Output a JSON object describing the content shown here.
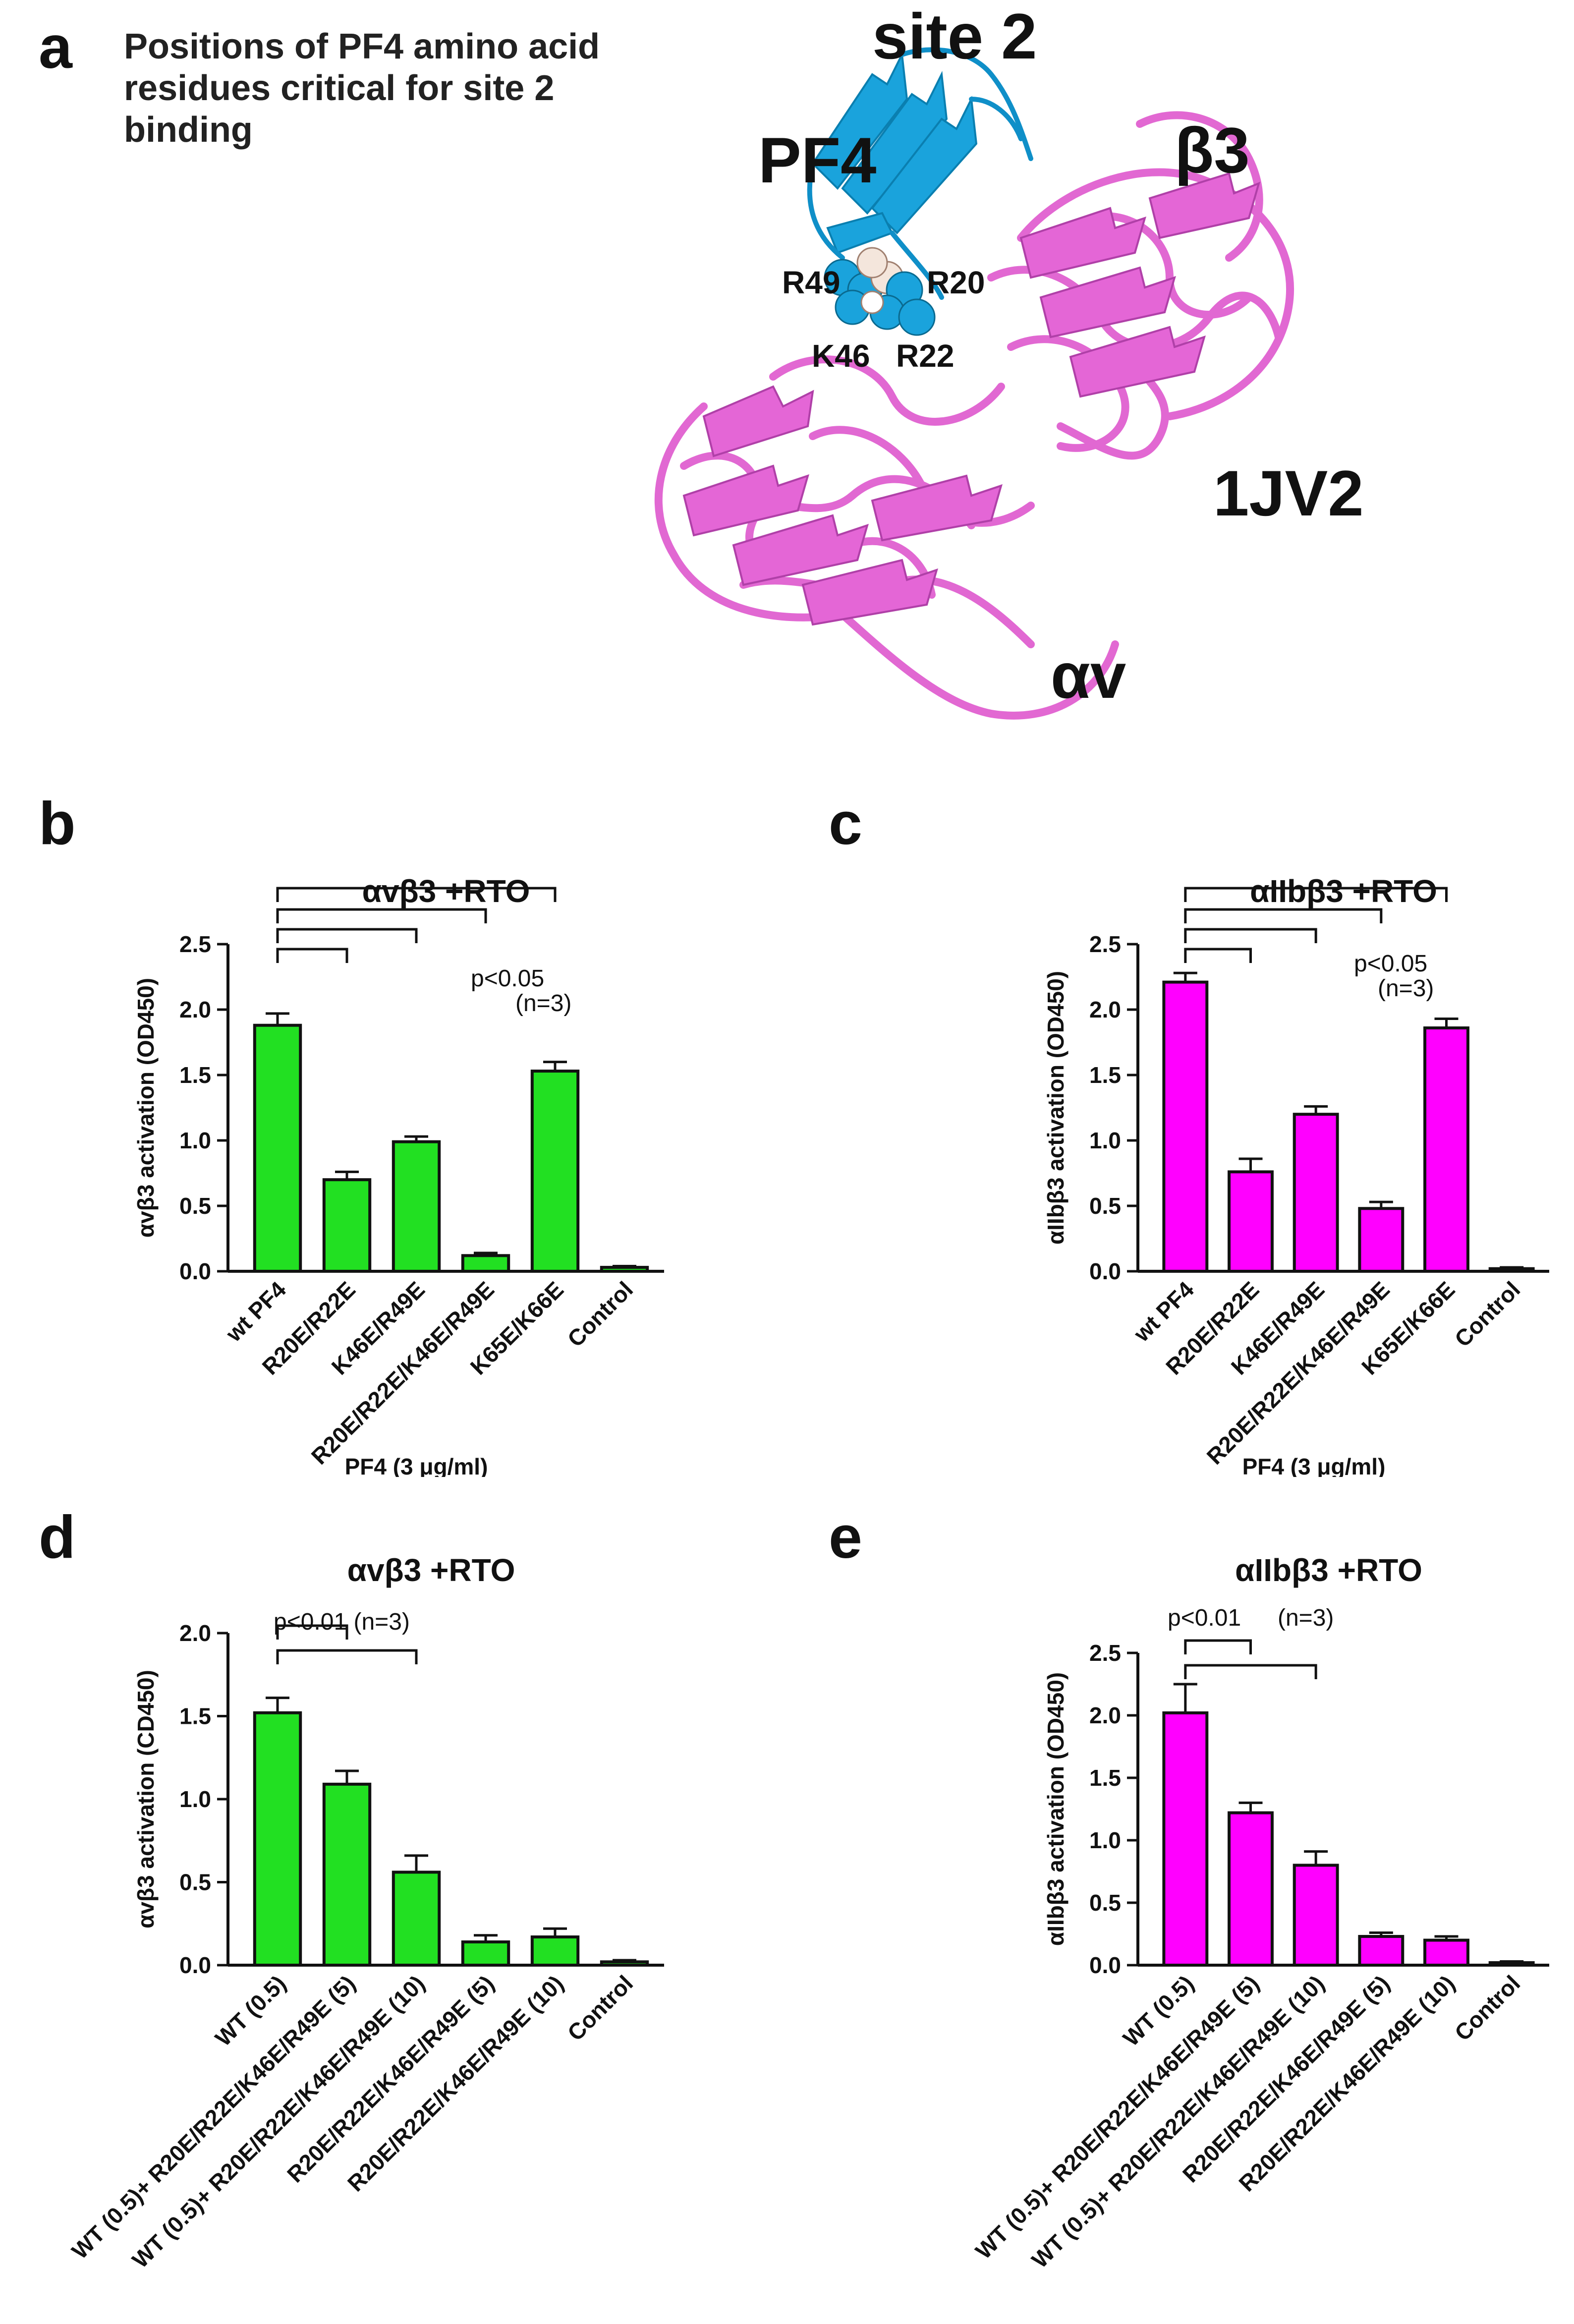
{
  "panels": {
    "a": "a",
    "b": "b",
    "c": "c",
    "d": "d",
    "e": "e"
  },
  "structure": {
    "caption": "Positions of PF4 amino acid residues critical for site 2 binding",
    "site_label": "site 2",
    "pf4_label": "PF4",
    "beta3_label": "β3",
    "pdb_label": "1JV2",
    "alphav_label": "αv",
    "residues": [
      "R49",
      "R20",
      "K46",
      "R22"
    ],
    "colors": {
      "pf4": "#1aa3dc",
      "integrin": "#e060d0",
      "integrin_dark": "#c040b8"
    }
  },
  "chart_data": [
    {
      "id": "b",
      "type": "bar",
      "title": "αvβ3 +RTO",
      "ylabel": "αvβ3 activation (OD450)",
      "xlabel": "PF4 (3 μg/ml)",
      "categories": [
        "wt PF4",
        "R20E/R22E",
        "K46E/R49E",
        "R20E/R22E/K46E/R49E",
        "K65E/K66E",
        "Control"
      ],
      "values": [
        1.88,
        0.7,
        0.99,
        0.12,
        1.53,
        0.03
      ],
      "errors": [
        0.09,
        0.06,
        0.04,
        0.02,
        0.07,
        0.01
      ],
      "ylim": [
        0,
        2.5
      ],
      "yticks": [
        "0.0",
        "0.5",
        "1.0",
        "1.5",
        "2.0",
        "2.5"
      ],
      "color": "#22e022",
      "stat_line1": "p<0.05",
      "stat_line2": "(n=3)"
    },
    {
      "id": "c",
      "type": "bar",
      "title": "αIIbβ3 +RTO",
      "ylabel": "αIIbβ3 activation (OD450)",
      "xlabel": "PF4 (3 μg/ml)",
      "categories": [
        "wt PF4",
        "R20E/R22E",
        "K46E/R49E",
        "R20E/R22E/K46E/R49E",
        "K65E/K66E",
        "Control"
      ],
      "values": [
        2.21,
        0.76,
        1.2,
        0.48,
        1.86,
        0.02
      ],
      "errors": [
        0.07,
        0.1,
        0.06,
        0.05,
        0.07,
        0.01
      ],
      "ylim": [
        0,
        2.5
      ],
      "yticks": [
        "0.0",
        "0.5",
        "1.0",
        "1.5",
        "2.0",
        "2.5"
      ],
      "color": "#ff00ff",
      "stat_line1": "p<0.05",
      "stat_line2": "(n=3)"
    },
    {
      "id": "d",
      "type": "bar",
      "title": "αvβ3 +RTO",
      "ylabel": "αvβ3 activation (CD450)",
      "xlabel": "",
      "categories": [
        "WT (0.5)",
        "WT (0.5)+ R20E/R22E/K46E/R49E (5)",
        "WT (0.5)+ R20E/R22E/K46E/R49E (10)",
        "R20E/R22E/K46E/R49E (5)",
        "R20E/R22E/K46E/R49E (10)",
        "Control"
      ],
      "values": [
        1.52,
        1.09,
        0.56,
        0.14,
        0.17,
        0.02
      ],
      "errors": [
        0.09,
        0.08,
        0.1,
        0.04,
        0.05,
        0.01
      ],
      "ylim": [
        0,
        2.0
      ],
      "yticks": [
        "0.0",
        "0.5",
        "1.0",
        "1.5",
        "2.0"
      ],
      "color": "#22e022",
      "stat_line1": "p<0.01 (n=3)",
      "stat_line2": ""
    },
    {
      "id": "e",
      "type": "bar",
      "title": "αIIbβ3 +RTO",
      "ylabel": "αIIbβ3 activation (OD450)",
      "xlabel": "",
      "categories": [
        "WT (0.5)",
        "WT (0.5)+ R20E/R22E/K46E/R49E (5)",
        "WT (0.5)+ R20E/R22E/K46E/R49E (10)",
        "R20E/R22E/K46E/R49E (5)",
        "R20E/R22E/K46E/R49E (10)",
        "Control"
      ],
      "values": [
        2.02,
        1.22,
        0.8,
        0.23,
        0.2,
        0.02
      ],
      "errors": [
        0.23,
        0.08,
        0.11,
        0.03,
        0.03,
        0.01
      ],
      "ylim": [
        0,
        2.5
      ],
      "yticks": [
        "0.0",
        "0.5",
        "1.0",
        "1.5",
        "2.0",
        "2.5"
      ],
      "color": "#ff00ff",
      "stat_line1": "p<0.01",
      "stat_line2": "(n=3)"
    }
  ]
}
